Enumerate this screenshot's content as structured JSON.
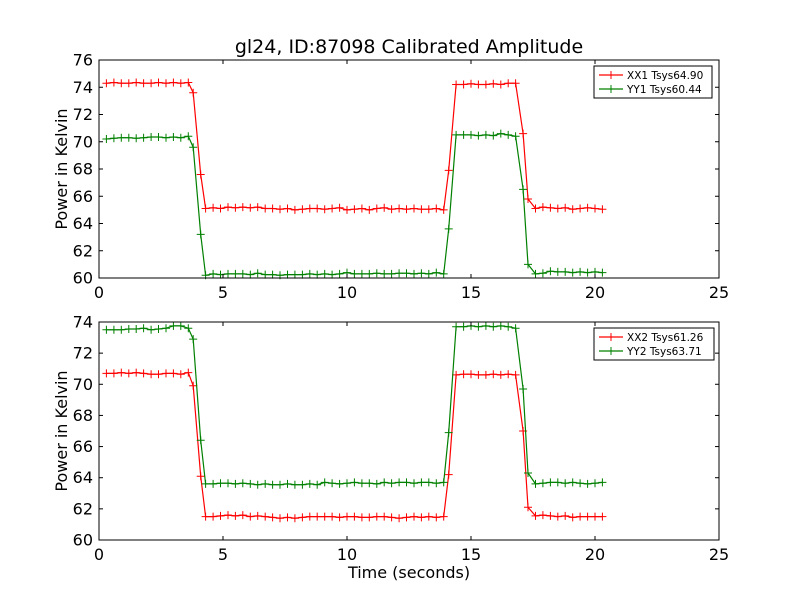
{
  "title": "gl24, ID:87098 Calibrated Amplitude",
  "chart_data": [
    {
      "type": "line",
      "title": "gl24, ID:87098 Calibrated Amplitude",
      "xlabel": "",
      "ylabel": "Power in Kelvin",
      "xlim": [
        0,
        25
      ],
      "ylim": [
        60,
        76
      ],
      "xticks": [
        0,
        5,
        10,
        15,
        20,
        25
      ],
      "yticks": [
        60,
        62,
        64,
        66,
        68,
        70,
        72,
        74,
        76
      ],
      "grid": false,
      "legend_position": "top-right",
      "marker": "plus",
      "x": [
        0.3,
        0.6,
        0.9,
        1.2,
        1.5,
        1.8,
        2.1,
        2.4,
        2.7,
        3.0,
        3.3,
        3.6,
        3.8,
        4.1,
        4.3,
        4.6,
        4.9,
        5.2,
        5.5,
        5.8,
        6.1,
        6.4,
        6.7,
        7.0,
        7.3,
        7.6,
        7.9,
        8.2,
        8.5,
        8.8,
        9.1,
        9.4,
        9.7,
        10.0,
        10.3,
        10.6,
        10.9,
        11.2,
        11.5,
        11.8,
        12.1,
        12.4,
        12.7,
        13.0,
        13.3,
        13.6,
        13.9,
        14.1,
        14.4,
        14.7,
        15.0,
        15.3,
        15.6,
        15.9,
        16.2,
        16.5,
        16.8,
        17.1,
        17.3,
        17.6,
        17.9,
        18.2,
        18.5,
        18.8,
        19.1,
        19.4,
        19.7,
        20.0,
        20.3
      ],
      "series": [
        {
          "name": "XX1 Tsys64.90",
          "color": "#ff0000",
          "values": [
            74.3,
            74.35,
            74.3,
            74.3,
            74.35,
            74.3,
            74.3,
            74.35,
            74.3,
            74.35,
            74.3,
            74.35,
            73.6,
            67.6,
            65.1,
            65.15,
            65.1,
            65.2,
            65.15,
            65.2,
            65.15,
            65.2,
            65.1,
            65.1,
            65.05,
            65.1,
            65.0,
            65.05,
            65.1,
            65.1,
            65.05,
            65.1,
            65.15,
            65.0,
            65.05,
            65.1,
            65.0,
            65.1,
            65.15,
            65.05,
            65.1,
            65.05,
            65.1,
            65.05,
            65.05,
            65.1,
            65.0,
            67.9,
            74.2,
            74.2,
            74.25,
            74.2,
            74.2,
            74.25,
            74.2,
            74.3,
            74.3,
            70.6,
            65.8,
            65.1,
            65.2,
            65.15,
            65.1,
            65.15,
            65.05,
            65.1,
            65.15,
            65.1,
            65.05
          ]
        },
        {
          "name": "YY1 Tsys60.44",
          "color": "#008000",
          "values": [
            70.2,
            70.25,
            70.3,
            70.3,
            70.25,
            70.3,
            70.35,
            70.35,
            70.3,
            70.35,
            70.3,
            70.4,
            69.6,
            63.2,
            60.2,
            60.3,
            60.25,
            60.3,
            60.3,
            60.3,
            60.25,
            60.35,
            60.25,
            60.25,
            60.2,
            60.25,
            60.25,
            60.25,
            60.3,
            60.25,
            60.3,
            60.25,
            60.3,
            60.4,
            60.3,
            60.3,
            60.3,
            60.35,
            60.3,
            60.3,
            60.35,
            60.35,
            60.3,
            60.35,
            60.3,
            60.4,
            60.3,
            63.6,
            70.5,
            70.5,
            70.5,
            70.45,
            70.5,
            70.45,
            70.6,
            70.5,
            70.4,
            66.5,
            61.0,
            60.3,
            60.35,
            60.5,
            60.45,
            60.45,
            60.4,
            60.45,
            60.4,
            60.45,
            60.4
          ]
        }
      ]
    },
    {
      "type": "line",
      "title": "",
      "xlabel": "Time (seconds)",
      "ylabel": "Power in Kelvin",
      "xlim": [
        0,
        25
      ],
      "ylim": [
        60,
        74
      ],
      "xticks": [
        0,
        5,
        10,
        15,
        20,
        25
      ],
      "yticks": [
        60,
        62,
        64,
        66,
        68,
        70,
        72,
        74
      ],
      "grid": false,
      "legend_position": "top-right",
      "marker": "plus",
      "x": [
        0.3,
        0.6,
        0.9,
        1.2,
        1.5,
        1.8,
        2.1,
        2.4,
        2.7,
        3.0,
        3.3,
        3.6,
        3.8,
        4.1,
        4.3,
        4.6,
        4.9,
        5.2,
        5.5,
        5.8,
        6.1,
        6.4,
        6.7,
        7.0,
        7.3,
        7.6,
        7.9,
        8.2,
        8.5,
        8.8,
        9.1,
        9.4,
        9.7,
        10.0,
        10.3,
        10.6,
        10.9,
        11.2,
        11.5,
        11.8,
        12.1,
        12.4,
        12.7,
        13.0,
        13.3,
        13.6,
        13.9,
        14.1,
        14.4,
        14.7,
        15.0,
        15.3,
        15.6,
        15.9,
        16.2,
        16.5,
        16.8,
        17.1,
        17.3,
        17.6,
        17.9,
        18.2,
        18.5,
        18.8,
        19.1,
        19.4,
        19.7,
        20.0,
        20.3
      ],
      "series": [
        {
          "name": "XX2 Tsys61.26",
          "color": "#ff0000",
          "values": [
            70.7,
            70.7,
            70.75,
            70.7,
            70.75,
            70.7,
            70.65,
            70.65,
            70.7,
            70.7,
            70.65,
            70.75,
            69.9,
            64.1,
            61.5,
            61.5,
            61.55,
            61.6,
            61.55,
            61.6,
            61.5,
            61.55,
            61.5,
            61.45,
            61.4,
            61.45,
            61.4,
            61.45,
            61.5,
            61.5,
            61.5,
            61.5,
            61.45,
            61.5,
            61.5,
            61.45,
            61.45,
            61.5,
            61.5,
            61.45,
            61.4,
            61.45,
            61.5,
            61.45,
            61.5,
            61.45,
            61.5,
            64.2,
            70.6,
            70.65,
            70.65,
            70.6,
            70.6,
            70.65,
            70.6,
            70.65,
            70.6,
            67.0,
            62.1,
            61.55,
            61.6,
            61.55,
            61.5,
            61.55,
            61.45,
            61.5,
            61.5,
            61.5,
            61.5
          ]
        },
        {
          "name": "YY2 Tsys63.71",
          "color": "#008000",
          "values": [
            73.5,
            73.5,
            73.5,
            73.55,
            73.55,
            73.6,
            73.5,
            73.55,
            73.6,
            73.75,
            73.75,
            73.6,
            72.9,
            66.4,
            63.6,
            63.6,
            63.65,
            63.65,
            63.6,
            63.65,
            63.6,
            63.55,
            63.6,
            63.55,
            63.55,
            63.6,
            63.55,
            63.55,
            63.6,
            63.55,
            63.7,
            63.65,
            63.6,
            63.65,
            63.7,
            63.65,
            63.65,
            63.6,
            63.7,
            63.65,
            63.7,
            63.7,
            63.65,
            63.7,
            63.7,
            63.65,
            63.7,
            66.9,
            73.7,
            73.7,
            73.75,
            73.7,
            73.75,
            73.7,
            73.75,
            73.7,
            73.6,
            69.7,
            64.3,
            63.6,
            63.65,
            63.7,
            63.7,
            63.65,
            63.7,
            63.65,
            63.6,
            63.65,
            63.7
          ]
        }
      ]
    }
  ]
}
